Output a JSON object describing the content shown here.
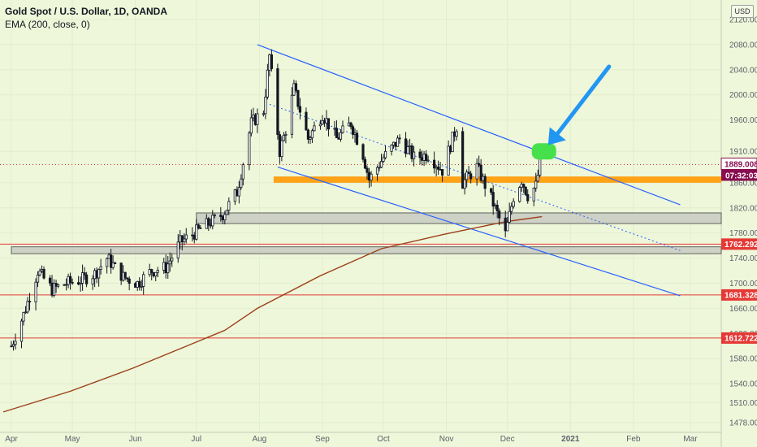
{
  "legend": {
    "title": "Gold Spot / U.S. Dollar, 1D, OANDA",
    "indicator": "EMA (200, close, 0)"
  },
  "currency": "USD",
  "colors": {
    "background": "#eef7d9",
    "up_candle": "#26a69a",
    "down_candle": "#ef5350",
    "candle_wick": "#131722",
    "ema": "#9c3f1a",
    "channel": "#2962ff",
    "horizontal_red": "#e53935",
    "orange_zone": "#ff9800",
    "gray_zone": "#c9cbc2",
    "green_highlight": "#46e14a",
    "arrow": "#2196f3",
    "countdown_bg": "#880e4f",
    "price_tag_bg": "#ffffff"
  },
  "chart_data": {
    "type": "candlestick",
    "symbol": "XAUUSD",
    "timeframe": "1D",
    "x_ticks": [
      "Apr",
      "May",
      "Jun",
      "Jul",
      "Aug",
      "Sep",
      "Oct",
      "Nov",
      "Dec",
      "2021",
      "Feb",
      "Mar"
    ],
    "y_ticks": [
      1478.0,
      1510.0,
      1540.0,
      1580.0,
      1620.0,
      1660.0,
      1700.0,
      1740.0,
      1780.0,
      1820.0,
      1860.0,
      1910.0,
      1960.0,
      2000.0,
      2040.0,
      2080.0,
      2120.0
    ],
    "y_tick_labels": [
      "1478.000",
      "1510.000",
      "1540.000",
      "1580.000",
      "1620.000",
      "1660.000",
      "1700.000",
      "1740.000",
      "1780.000",
      "1820.000",
      "1860.000",
      "1910.000",
      "1960.000",
      "2000.000",
      "2040.000",
      "2080.000",
      "2120.000"
    ],
    "ylim": [
      1460,
      2130
    ],
    "last_price": 1889.008,
    "last_price_label": "1889.008",
    "countdown": "07:32:03",
    "horizontal_levels": [
      {
        "price": 1762.292,
        "label": "1762.292"
      },
      {
        "price": 1681.328,
        "label": "1681.328"
      },
      {
        "price": 1612.722,
        "label": "1612.722"
      }
    ],
    "price_path": [
      [
        "2020-04-01",
        1600
      ],
      [
        "2020-04-07",
        1650
      ],
      [
        "2020-04-14",
        1720
      ],
      [
        "2020-04-21",
        1690
      ],
      [
        "2020-04-28",
        1700
      ],
      [
        "2020-05-05",
        1705
      ],
      [
        "2020-05-12",
        1715
      ],
      [
        "2020-05-18",
        1740
      ],
      [
        "2020-05-26",
        1710
      ],
      [
        "2020-06-02",
        1700
      ],
      [
        "2020-06-09",
        1720
      ],
      [
        "2020-06-16",
        1725
      ],
      [
        "2020-06-23",
        1765
      ],
      [
        "2020-06-30",
        1780
      ],
      [
        "2020-07-07",
        1795
      ],
      [
        "2020-07-14",
        1810
      ],
      [
        "2020-07-21",
        1845
      ],
      [
        "2020-07-28",
        1955
      ],
      [
        "2020-08-03",
        1975
      ],
      [
        "2020-08-06",
        2062
      ],
      [
        "2020-08-11",
        1910
      ],
      [
        "2020-08-14",
        1945
      ],
      [
        "2020-08-18",
        2010
      ],
      [
        "2020-08-25",
        1930
      ],
      [
        "2020-09-01",
        1970
      ],
      [
        "2020-09-08",
        1930
      ],
      [
        "2020-09-15",
        1955
      ],
      [
        "2020-09-21",
        1905
      ],
      [
        "2020-09-24",
        1865
      ],
      [
        "2020-10-01",
        1900
      ],
      [
        "2020-10-09",
        1930
      ],
      [
        "2020-10-16",
        1900
      ],
      [
        "2020-10-23",
        1905
      ],
      [
        "2020-10-30",
        1880
      ],
      [
        "2020-11-06",
        1950
      ],
      [
        "2020-11-09",
        1860
      ],
      [
        "2020-11-16",
        1885
      ],
      [
        "2020-11-23",
        1835
      ],
      [
        "2020-11-30",
        1778
      ],
      [
        "2020-12-04",
        1838
      ],
      [
        "2020-12-08",
        1865
      ],
      [
        "2020-12-11",
        1840
      ],
      [
        "2020-12-15",
        1855
      ],
      [
        "2020-12-17",
        1889
      ]
    ],
    "ema200": [
      [
        "2020-03-28",
        1495
      ],
      [
        "2020-04-30",
        1528
      ],
      [
        "2020-05-31",
        1565
      ],
      [
        "2020-06-30",
        1605
      ],
      [
        "2020-07-15",
        1625
      ],
      [
        "2020-07-31",
        1660
      ],
      [
        "2020-08-31",
        1712
      ],
      [
        "2020-09-30",
        1755
      ],
      [
        "2020-10-31",
        1778
      ],
      [
        "2020-11-30",
        1798
      ],
      [
        "2020-12-18",
        1806
      ]
    ],
    "channel_upper": [
      [
        "2020-07-31",
        2080
      ],
      [
        "2021-02-24",
        1825
      ]
    ],
    "channel_lower": [
      [
        "2020-08-10",
        1885
      ],
      [
        "2021-02-24",
        1680
      ]
    ],
    "channel_mid": [
      [
        "2020-08-06",
        1985
      ],
      [
        "2021-02-24",
        1752
      ]
    ],
    "zones": [
      {
        "kind": "orange",
        "from": "2020-08-08",
        "to": "2021-03-31",
        "low": 1860,
        "high": 1870
      },
      {
        "kind": "gray",
        "from": "2020-07-01",
        "to": "2021-03-31",
        "low": 1795,
        "high": 1812
      },
      {
        "kind": "gray",
        "from": "2020-04-01",
        "to": "2021-03-31",
        "low": 1747,
        "high": 1758
      }
    ],
    "highlight": {
      "date": "2020-12-19",
      "price": 1910
    },
    "arrow": {
      "from": [
        "2021-01-20",
        2045
      ],
      "to": [
        "2020-12-21",
        1920
      ]
    }
  }
}
